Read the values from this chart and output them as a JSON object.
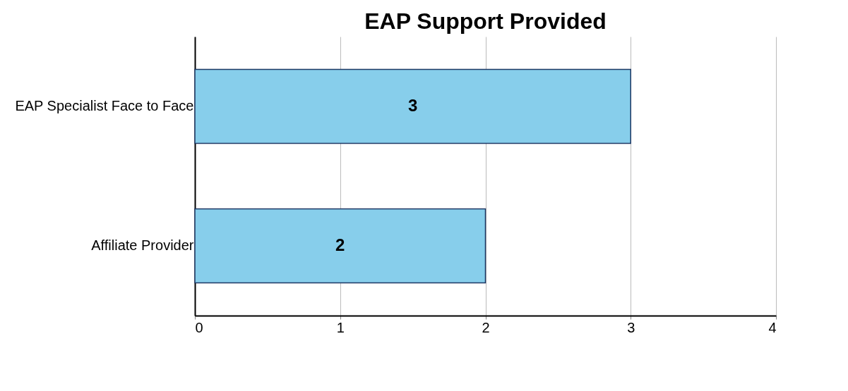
{
  "chart_data": {
    "type": "bar",
    "title": "EAP Support Provided",
    "orientation": "horizontal",
    "categories": [
      "EAP Specialist Face to Face",
      "Affiliate Provider"
    ],
    "values": [
      3,
      2
    ],
    "color": "#87ceeb",
    "xlim": [
      0,
      4
    ],
    "xticks": [
      0,
      1,
      2,
      3,
      4
    ],
    "grid": "x",
    "data_labels": true
  }
}
